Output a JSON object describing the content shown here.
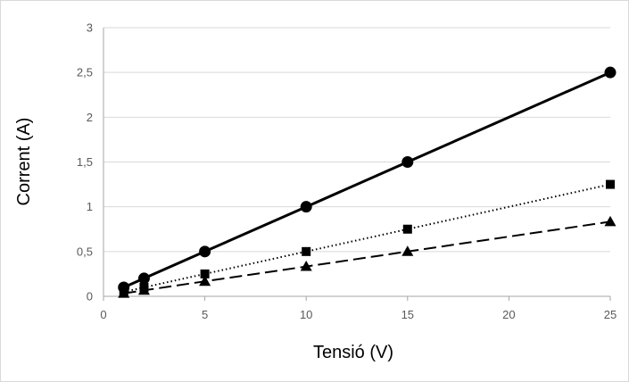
{
  "chart_data": {
    "type": "line",
    "title": "",
    "xlabel": "Tensió (V)",
    "ylabel": "Corrent (A)",
    "xlim": [
      0,
      25
    ],
    "ylim": [
      0,
      3
    ],
    "x_ticks": [
      "0",
      "5",
      "10",
      "15",
      "20",
      "25"
    ],
    "y_ticks": [
      "0",
      "0,5",
      "1",
      "1,5",
      "2",
      "2,5",
      "3"
    ],
    "grid": "horizontal",
    "legend": "none",
    "series": [
      {
        "marker": "circle",
        "line_style": "solid",
        "color": "#000000",
        "points": [
          [
            1,
            0.1
          ],
          [
            2,
            0.2
          ],
          [
            5,
            0.5
          ],
          [
            10,
            1.0
          ],
          [
            15,
            1.5
          ],
          [
            25,
            2.5
          ]
        ]
      },
      {
        "marker": "square",
        "line_style": "dotted",
        "color": "#000000",
        "points": [
          [
            1,
            0.05
          ],
          [
            2,
            0.1
          ],
          [
            5,
            0.25
          ],
          [
            10,
            0.5
          ],
          [
            15,
            0.75
          ],
          [
            25,
            1.25
          ]
        ]
      },
      {
        "marker": "triangle",
        "line_style": "dashed",
        "color": "#000000",
        "points": [
          [
            1,
            0.033
          ],
          [
            2,
            0.067
          ],
          [
            5,
            0.167
          ],
          [
            10,
            0.333
          ],
          [
            15,
            0.5
          ],
          [
            25,
            0.833
          ]
        ]
      }
    ]
  }
}
